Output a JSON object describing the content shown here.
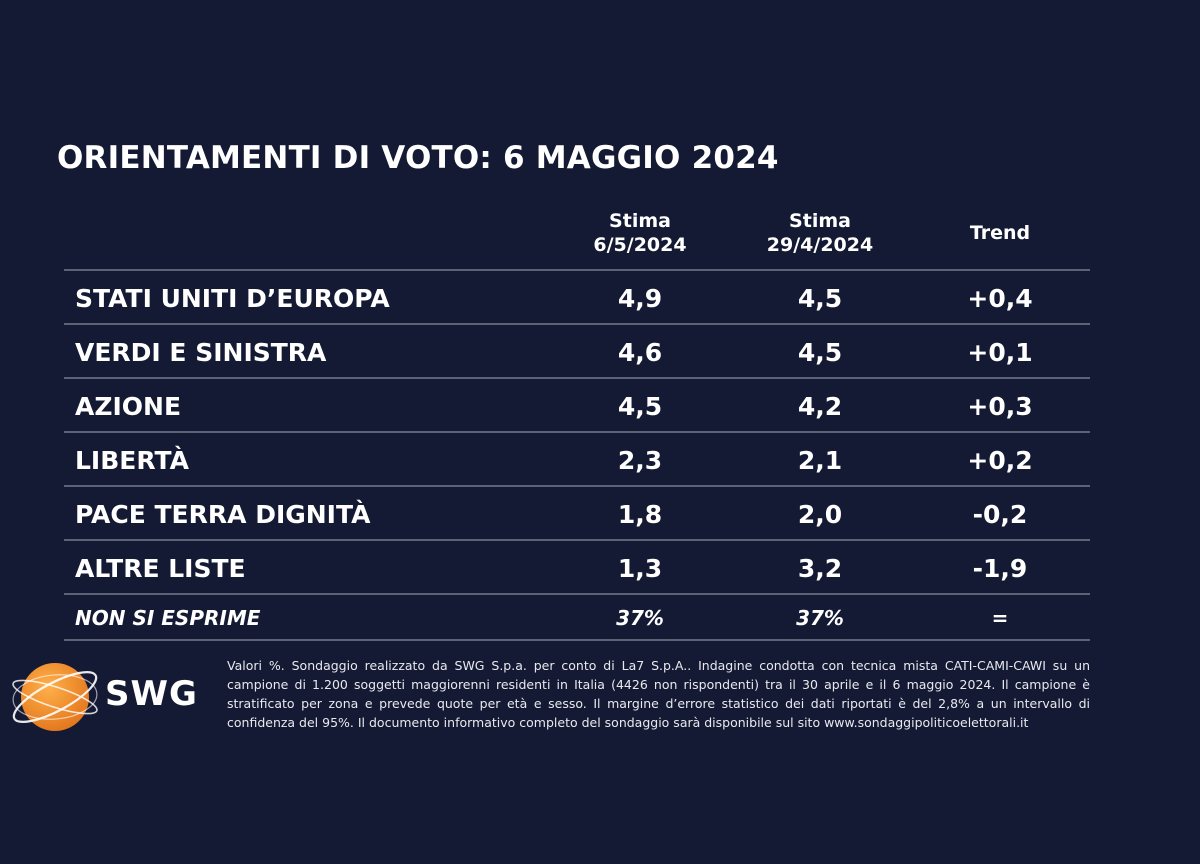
{
  "title": "ORIENTAMENTI DI VOTO: 6 MAGGIO 2024",
  "columns": {
    "current": {
      "line1": "Stima",
      "line2": "6/5/2024"
    },
    "previous": {
      "line1": "Stima",
      "line2": "29/4/2024"
    },
    "trend": "Trend"
  },
  "chart_data": {
    "type": "table",
    "title": "ORIENTAMENTI DI VOTO: 6 MAGGIO 2024",
    "headers": [
      "",
      "Stima 6/5/2024",
      "Stima 29/4/2024",
      "Trend"
    ],
    "rows": [
      {
        "label": "STATI UNITI D’EUROPA",
        "current": "4,9",
        "previous": "4,5",
        "trend": "+0,4"
      },
      {
        "label": "VERDI E SINISTRA",
        "current": "4,6",
        "previous": "4,5",
        "trend": "+0,1"
      },
      {
        "label": "AZIONE",
        "current": "4,5",
        "previous": "4,2",
        "trend": "+0,3"
      },
      {
        "label": "LIBERTÀ",
        "current": "2,3",
        "previous": "2,1",
        "trend": "+0,2"
      },
      {
        "label": "PACE TERRA DIGNITÀ",
        "current": "1,8",
        "previous": "2,0",
        "trend": "-0,2"
      },
      {
        "label": "ALTRE LISTE",
        "current": "1,3",
        "previous": "3,2",
        "trend": "-1,9"
      }
    ],
    "footer_row": {
      "label": "NON SI ESPRIME",
      "current": "37%",
      "previous": "37%",
      "trend": "="
    }
  },
  "logo": {
    "text": "SWG",
    "accent_color": "#f0922a"
  },
  "footnote": "Valori %. Sondaggio realizzato da SWG S.p.a. per conto di La7 S.p.A.. Indagine condotta con tecnica mista CATI-CAMI-CAWI su un campione di 1.200 soggetti maggiorenni residenti in Italia (4426 non rispondenti) tra il 30 aprile e il 6 maggio 2024. Il campione è stratificato per zona e prevede quote per età e sesso. Il margine d’errore statistico dei dati riportati è del 2,8% a un intervallo di confidenza del 95%. Il documento informativo completo del sondaggio sarà disponibile sul sito www.sondaggipoliticoelettorali.it",
  "colors": {
    "background": "#151a34",
    "separator": "#5e6274",
    "text": "#ffffff"
  }
}
